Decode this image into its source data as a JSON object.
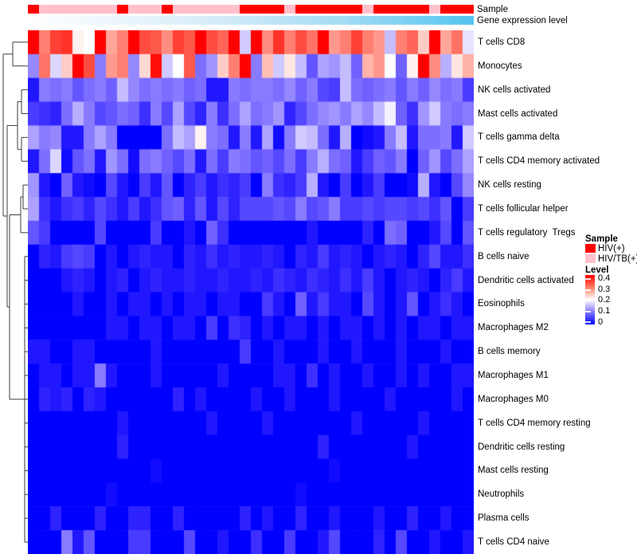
{
  "annotation_labels": {
    "sample": "Sample",
    "gene": "Gene expression level"
  },
  "legends": {
    "sample": {
      "title": "Sample",
      "items": [
        {
          "label": "HIV(+)",
          "color": "#FF0000"
        },
        {
          "label": "HIV/TB(+)",
          "color": "#FFC0CB"
        }
      ]
    },
    "level": {
      "title": "Level",
      "ticks": [
        "0.4",
        "0.3",
        "0.2",
        "0.1",
        "0"
      ],
      "top_color": "#FF0000",
      "mid_color": "#FFFFFF",
      "bottom_color": "#0000FF"
    }
  },
  "chart_data": {
    "type": "heatmap",
    "n_columns": 40,
    "colormap": {
      "min": 0,
      "mid": 0.2,
      "max": 0.4,
      "min_color": "#0000FF",
      "mid_color": "#FFFFFF",
      "max_color": "#FF0000"
    },
    "column_annotation_sample": {
      "label": "Sample",
      "classes": {
        "HIV(+)": "#FF0000",
        "HIV/TB(+)": "#FFC0CB"
      },
      "per_column": [
        "HIV(+)",
        "HIV/TB(+)",
        "HIV/TB(+)",
        "HIV/TB(+)",
        "HIV/TB(+)",
        "HIV/TB(+)",
        "HIV/TB(+)",
        "HIV/TB(+)",
        "HIV(+)",
        "HIV/TB(+)",
        "HIV/TB(+)",
        "HIV/TB(+)",
        "HIV(+)",
        "HIV/TB(+)",
        "HIV/TB(+)",
        "HIV/TB(+)",
        "HIV/TB(+)",
        "HIV/TB(+)",
        "HIV/TB(+)",
        "HIV(+)",
        "HIV(+)",
        "HIV(+)",
        "HIV(+)",
        "HIV/TB(+)",
        "HIV(+)",
        "HIV(+)",
        "HIV(+)",
        "HIV(+)",
        "HIV(+)",
        "HIV(+)",
        "HIV/TB(+)",
        "HIV(+)",
        "HIV(+)",
        "HIV(+)",
        "HIV(+)",
        "HIV(+)",
        "HIV/TB(+)",
        "HIV(+)",
        "HIV(+)",
        "HIV(+)"
      ]
    },
    "column_annotation_gene_expression": {
      "label": "Gene expression level",
      "type": "continuous",
      "gradient": [
        "#FFFFFF",
        "#D8EDF9",
        "#A5DCF4",
        "#53C5F0"
      ]
    },
    "rows": [
      "T cells CD8",
      "Monocytes",
      "NK cells activated",
      "Mast cells activated",
      "T cells gamma delta",
      "T cells CD4 memory activated",
      "NK cells resting",
      "T cells follicular helper",
      "T cells regulatory  Tregs",
      "B cells naive",
      "Dendritic cells activated",
      "Eosinophils",
      "Macrophages M2",
      "B cells memory",
      "Macrophages M1",
      "Macrophages M0",
      "T cells CD4 memory resting",
      "Dendritic cells resting",
      "Mast cells resting",
      "Neutrophils",
      "Plasma cells",
      "T cells CD4 naive"
    ],
    "values": [
      [
        0.4,
        0.3,
        0.35,
        0.36,
        0.21,
        0.2,
        0.4,
        0.27,
        0.3,
        0.4,
        0.34,
        0.33,
        0.29,
        0.35,
        0.33,
        0.4,
        0.34,
        0.32,
        0.4,
        0.16,
        0.4,
        0.29,
        0.36,
        0.3,
        0.34,
        0.31,
        0.4,
        0.28,
        0.3,
        0.35,
        0.3,
        0.28,
        0.15,
        0.3,
        0.32,
        0.24,
        0.4,
        0.27,
        0.31,
        0.18
      ],
      [
        0.11,
        0.31,
        0.17,
        0.24,
        0.4,
        0.34,
        0.1,
        0.28,
        0.3,
        0.11,
        0.23,
        0.39,
        0.16,
        0.2,
        0.33,
        0.09,
        0.12,
        0.24,
        0.3,
        0.4,
        0.1,
        0.25,
        0.16,
        0.22,
        0.15,
        0.07,
        0.13,
        0.12,
        0.15,
        0.08,
        0.26,
        0.28,
        0.2,
        0.08,
        0.21,
        0.4,
        0.29,
        0.14,
        0.22,
        0.26
      ],
      [
        0.02,
        0.1,
        0.09,
        0.1,
        0.07,
        0.09,
        0.1,
        0.08,
        0.15,
        0.11,
        0.09,
        0.1,
        0.09,
        0.1,
        0.08,
        0.09,
        0.02,
        0.02,
        0.1,
        0.09,
        0.1,
        0.1,
        0.09,
        0.11,
        0.08,
        0.1,
        0.06,
        0.05,
        0.15,
        0.09,
        0.08,
        0.09,
        0.1,
        0.07,
        0.1,
        0.08,
        0.11,
        0.09,
        0.1,
        0.05
      ],
      [
        0.05,
        0.04,
        0.03,
        0.09,
        0.14,
        0.1,
        0.06,
        0.07,
        0.09,
        0.08,
        0.04,
        0.1,
        0.06,
        0.13,
        0.06,
        0.03,
        0.1,
        0.04,
        0.09,
        0.13,
        0.09,
        0.1,
        0.12,
        0.03,
        0.06,
        0.09,
        0.11,
        0.12,
        0.1,
        0.13,
        0.11,
        0.15,
        0.19,
        0.08,
        0.04,
        0.12,
        0.16,
        0.1,
        0.09,
        0.1
      ],
      [
        0.13,
        0.1,
        0.11,
        0.02,
        0.02,
        0.1,
        0.13,
        0.1,
        0.0,
        0.0,
        0.0,
        0.0,
        0.09,
        0.15,
        0.13,
        0.21,
        0.1,
        0.09,
        0.02,
        0.1,
        0.02,
        0.13,
        0.01,
        0.1,
        0.16,
        0.15,
        0.09,
        0.02,
        0.14,
        0.0,
        0.01,
        0.02,
        0.1,
        0.15,
        0.02,
        0.09,
        0.09,
        0.1,
        0.02,
        0.16
      ],
      [
        0.02,
        0.09,
        0.17,
        0.01,
        0.07,
        0.09,
        0.02,
        0.12,
        0.09,
        0.01,
        0.09,
        0.1,
        0.08,
        0.06,
        0.09,
        0.02,
        0.09,
        0.05,
        0.1,
        0.09,
        0.07,
        0.08,
        0.06,
        0.09,
        0.05,
        0.1,
        0.14,
        0.09,
        0.08,
        0.02,
        0.05,
        0.08,
        0.07,
        0.1,
        0.0,
        0.08,
        0.12,
        0.06,
        0.09,
        0.13
      ],
      [
        0.12,
        0.02,
        0.0,
        0.08,
        0.02,
        0.01,
        0.0,
        0.06,
        0.02,
        0.0,
        0.05,
        0.02,
        0.07,
        0.0,
        0.03,
        0.05,
        0.02,
        0.04,
        0.03,
        0.05,
        0.0,
        0.1,
        0.04,
        0.03,
        0.05,
        0.14,
        0.02,
        0.0,
        0.05,
        0.0,
        0.02,
        0.05,
        0.0,
        0.0,
        0.01,
        0.14,
        0.02,
        0.0,
        0.06,
        0.11
      ],
      [
        0.13,
        0.04,
        0.02,
        0.04,
        0.05,
        0.03,
        0.06,
        0.04,
        0.02,
        0.05,
        0.02,
        0.04,
        0.07,
        0.08,
        0.03,
        0.07,
        0.02,
        0.06,
        0.03,
        0.06,
        0.06,
        0.06,
        0.07,
        0.06,
        0.1,
        0.06,
        0.07,
        0.1,
        0.05,
        0.05,
        0.06,
        0.05,
        0.06,
        0.06,
        0.05,
        0.06,
        0.04,
        0.07,
        0.0,
        0.05
      ],
      [
        0.07,
        0.05,
        0.0,
        0.0,
        0.0,
        0.0,
        0.06,
        0.0,
        0.0,
        0.0,
        0.0,
        0.05,
        0.0,
        0.0,
        0.02,
        0.0,
        0.08,
        0.04,
        0.0,
        0.0,
        0.0,
        0.0,
        0.0,
        0.0,
        0.0,
        0.02,
        0.0,
        0.0,
        0.0,
        0.0,
        0.03,
        0.0,
        0.09,
        0.08,
        0.0,
        0.0,
        0.02,
        0.06,
        0.0,
        0.07
      ],
      [
        0.0,
        0.03,
        0.02,
        0.05,
        0.06,
        0.05,
        0.0,
        0.02,
        0.0,
        0.02,
        0.03,
        0.02,
        0.02,
        0.0,
        0.03,
        0.02,
        0.04,
        0.02,
        0.03,
        0.02,
        0.02,
        0.03,
        0.02,
        0.0,
        0.03,
        0.02,
        0.05,
        0.02,
        0.03,
        0.02,
        0.0,
        0.02,
        0.03,
        0.02,
        0.0,
        0.03,
        0.06,
        0.02,
        0.02,
        0.04
      ],
      [
        0.0,
        0.0,
        0.0,
        0.02,
        0.03,
        0.02,
        0.0,
        0.02,
        0.03,
        0.0,
        0.02,
        0.03,
        0.02,
        0.02,
        0.03,
        0.02,
        0.02,
        0.03,
        0.02,
        0.02,
        0.03,
        0.02,
        0.04,
        0.03,
        0.02,
        0.04,
        0.03,
        0.02,
        0.04,
        0.02,
        0.05,
        0.02,
        0.0,
        0.02,
        0.03,
        0.02,
        0.0,
        0.03,
        0.05,
        0.02
      ],
      [
        0.0,
        0.0,
        0.0,
        0.0,
        0.02,
        0.0,
        0.0,
        0.02,
        0.0,
        0.02,
        0.02,
        0.0,
        0.02,
        0.0,
        0.02,
        0.02,
        0.0,
        0.02,
        0.02,
        0.0,
        0.0,
        0.05,
        0.02,
        0.0,
        0.08,
        0.02,
        0.05,
        0.02,
        0.02,
        0.0,
        0.06,
        0.02,
        0.0,
        0.02,
        0.07,
        0.0,
        0.02,
        0.04,
        0.02,
        0.0
      ],
      [
        0.0,
        0.0,
        0.0,
        0.0,
        0.0,
        0.0,
        0.0,
        0.02,
        0.02,
        0.0,
        0.02,
        0.02,
        0.0,
        0.02,
        0.02,
        0.0,
        0.05,
        0.0,
        0.04,
        0.03,
        0.0,
        0.02,
        0.0,
        0.02,
        0.02,
        0.0,
        0.02,
        0.0,
        0.02,
        0.02,
        0.0,
        0.02,
        0.0,
        0.02,
        0.0,
        0.02,
        0.02,
        0.0,
        0.02,
        0.02
      ],
      [
        0.02,
        0.02,
        0.0,
        0.0,
        0.02,
        0.02,
        0.0,
        0.0,
        0.0,
        0.0,
        0.0,
        0.02,
        0.0,
        0.0,
        0.0,
        0.0,
        0.0,
        0.0,
        0.0,
        0.05,
        0.0,
        0.0,
        0.02,
        0.0,
        0.0,
        0.0,
        0.02,
        0.0,
        0.0,
        0.02,
        0.0,
        0.0,
        0.0,
        0.02,
        0.0,
        0.0,
        0.0,
        0.02,
        0.0,
        0.0
      ],
      [
        0.0,
        0.02,
        0.02,
        0.0,
        0.02,
        0.02,
        0.1,
        0.02,
        0.0,
        0.0,
        0.0,
        0.02,
        0.0,
        0.0,
        0.0,
        0.0,
        0.0,
        0.02,
        0.0,
        0.0,
        0.0,
        0.0,
        0.02,
        0.02,
        0.0,
        0.04,
        0.0,
        0.02,
        0.0,
        0.0,
        0.02,
        0.0,
        0.0,
        0.02,
        0.0,
        0.02,
        0.0,
        0.0,
        0.02,
        0.02
      ],
      [
        0.0,
        0.03,
        0.02,
        0.03,
        0.0,
        0.03,
        0.02,
        0.0,
        0.0,
        0.0,
        0.0,
        0.0,
        0.0,
        0.03,
        0.0,
        0.02,
        0.0,
        0.0,
        0.0,
        0.0,
        0.02,
        0.0,
        0.0,
        0.02,
        0.0,
        0.0,
        0.0,
        0.02,
        0.0,
        0.0,
        0.0,
        0.0,
        0.02,
        0.0,
        0.0,
        0.0,
        0.0,
        0.0,
        0.02,
        0.0
      ],
      [
        0.0,
        0.0,
        0.0,
        0.0,
        0.0,
        0.0,
        0.0,
        0.0,
        0.02,
        0.0,
        0.0,
        0.0,
        0.0,
        0.0,
        0.0,
        0.0,
        0.02,
        0.0,
        0.0,
        0.0,
        0.0,
        0.02,
        0.0,
        0.0,
        0.0,
        0.0,
        0.0,
        0.0,
        0.0,
        0.02,
        0.0,
        0.0,
        0.0,
        0.0,
        0.0,
        0.02,
        0.0,
        0.0,
        0.0,
        0.0
      ],
      [
        0.0,
        0.0,
        0.0,
        0.0,
        0.0,
        0.0,
        0.0,
        0.0,
        0.03,
        0.0,
        0.0,
        0.0,
        0.0,
        0.0,
        0.0,
        0.0,
        0.0,
        0.0,
        0.0,
        0.0,
        0.0,
        0.0,
        0.0,
        0.0,
        0.0,
        0.0,
        0.03,
        0.0,
        0.0,
        0.0,
        0.0,
        0.0,
        0.0,
        0.0,
        0.02,
        0.0,
        0.0,
        0.0,
        0.0,
        0.0
      ],
      [
        0.0,
        0.0,
        0.0,
        0.0,
        0.0,
        0.0,
        0.0,
        0.0,
        0.0,
        0.0,
        0.0,
        0.01,
        0.0,
        0.0,
        0.0,
        0.0,
        0.0,
        0.0,
        0.0,
        0.0,
        0.0,
        0.0,
        0.0,
        0.0,
        0.0,
        0.0,
        0.0,
        0.01,
        0.0,
        0.0,
        0.0,
        0.0,
        0.0,
        0.0,
        0.0,
        0.0,
        0.0,
        0.0,
        0.0,
        0.0
      ],
      [
        0.0,
        0.0,
        0.0,
        0.0,
        0.0,
        0.0,
        0.0,
        0.01,
        0.0,
        0.0,
        0.0,
        0.0,
        0.0,
        0.0,
        0.0,
        0.0,
        0.0,
        0.0,
        0.0,
        0.0,
        0.0,
        0.0,
        0.0,
        0.0,
        0.01,
        0.0,
        0.0,
        0.0,
        0.0,
        0.0,
        0.0,
        0.0,
        0.0,
        0.0,
        0.0,
        0.0,
        0.0,
        0.0,
        0.0,
        0.0
      ],
      [
        0.0,
        0.0,
        0.03,
        0.0,
        0.0,
        0.0,
        0.03,
        0.0,
        0.0,
        0.03,
        0.03,
        0.0,
        0.0,
        0.03,
        0.0,
        0.0,
        0.0,
        0.0,
        0.0,
        0.03,
        0.0,
        0.02,
        0.0,
        0.0,
        0.03,
        0.0,
        0.0,
        0.02,
        0.0,
        0.0,
        0.0,
        0.02,
        0.0,
        0.0,
        0.03,
        0.0,
        0.0,
        0.02,
        0.0,
        0.0
      ],
      [
        0.0,
        0.0,
        0.0,
        0.1,
        0.02,
        0.07,
        0.0,
        0.0,
        0.0,
        0.05,
        0.05,
        0.0,
        0.0,
        0.0,
        0.06,
        0.0,
        0.0,
        0.02,
        0.0,
        0.0,
        0.04,
        0.0,
        0.0,
        0.05,
        0.0,
        0.0,
        0.02,
        0.06,
        0.0,
        0.0,
        0.0,
        0.03,
        0.0,
        0.06,
        0.0,
        0.0,
        0.02,
        0.0,
        0.0,
        0.02
      ]
    ]
  }
}
